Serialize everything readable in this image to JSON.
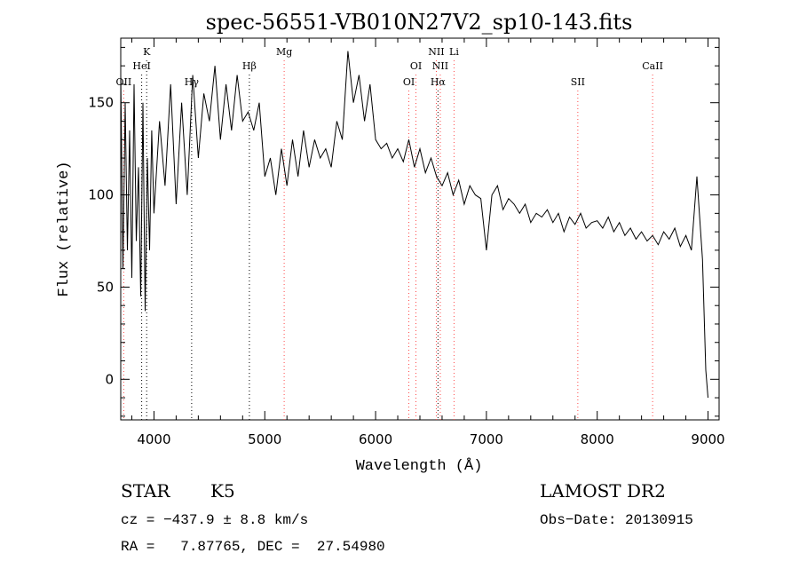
{
  "chart_data": {
    "type": "line",
    "title": "spec-56551-VB010N27V2_sp10-143.fits",
    "xlabel": "Wavelength (Å)",
    "ylabel": "Flux (relative)",
    "xlim": [
      3700,
      9100
    ],
    "ylim": [
      -22,
      185
    ],
    "xticks": [
      4000,
      5000,
      6000,
      7000,
      8000,
      9000
    ],
    "yticks": [
      0,
      50,
      100,
      150
    ],
    "grid": false,
    "line_color": "#000000",
    "marker_color": "#ff4a4a",
    "series": [
      {
        "x": [
          3700,
          3720,
          3740,
          3760,
          3780,
          3800,
          3820,
          3840,
          3860,
          3880,
          3900,
          3920,
          3940,
          3960,
          3980,
          4000,
          4050,
          4100,
          4150,
          4200,
          4250,
          4300,
          4350,
          4400,
          4450,
          4500,
          4550,
          4600,
          4650,
          4700,
          4750,
          4800,
          4850,
          4900,
          4950,
          5000,
          5050,
          5100,
          5150,
          5200,
          5250,
          5300,
          5350,
          5400,
          5450,
          5500,
          5550,
          5600,
          5650,
          5700,
          5750,
          5800,
          5850,
          5900,
          5950,
          6000,
          6050,
          6100,
          6150,
          6200,
          6250,
          6300,
          6350,
          6400,
          6450,
          6500,
          6550,
          6600,
          6650,
          6700,
          6750,
          6800,
          6850,
          6900,
          6950,
          7000,
          7050,
          7100,
          7150,
          7200,
          7250,
          7300,
          7350,
          7400,
          7450,
          7500,
          7550,
          7600,
          7650,
          7700,
          7750,
          7800,
          7850,
          7900,
          7950,
          8000,
          8050,
          8100,
          8150,
          8200,
          8250,
          8300,
          8350,
          8400,
          8450,
          8500,
          8550,
          8600,
          8650,
          8700,
          8750,
          8800,
          8850,
          8900,
          8950,
          8980,
          9000
        ],
        "y": [
          165,
          60,
          150,
          70,
          135,
          55,
          160,
          75,
          115,
          45,
          150,
          37,
          120,
          70,
          135,
          90,
          140,
          105,
          160,
          95,
          150,
          100,
          165,
          120,
          155,
          140,
          170,
          130,
          160,
          135,
          165,
          140,
          145,
          135,
          150,
          110,
          120,
          100,
          125,
          105,
          130,
          110,
          135,
          115,
          130,
          120,
          125,
          115,
          140,
          130,
          178,
          150,
          165,
          140,
          160,
          130,
          125,
          128,
          120,
          125,
          118,
          130,
          115,
          125,
          112,
          120,
          110,
          105,
          112,
          100,
          108,
          95,
          105,
          100,
          98,
          70,
          100,
          105,
          92,
          98,
          95,
          90,
          95,
          85,
          90,
          88,
          92,
          85,
          90,
          80,
          88,
          84,
          90,
          82,
          85,
          86,
          82,
          88,
          80,
          85,
          78,
          82,
          76,
          80,
          75,
          78,
          73,
          80,
          76,
          82,
          72,
          78,
          70,
          110,
          65,
          5,
          -10
        ]
      }
    ],
    "lines": [
      {
        "label": "OII",
        "x": 3727,
        "row": 3,
        "color": "#ff4a4a"
      },
      {
        "label": "K",
        "x": 3934,
        "row": 1,
        "color": "#000000"
      },
      {
        "label": "HeI",
        "x": 3889,
        "row": 2,
        "color": "#000000"
      },
      {
        "label": "Hγ",
        "x": 4340,
        "row": 3,
        "color": "#000000"
      },
      {
        "label": "Hβ",
        "x": 4861,
        "row": 2,
        "color": "#000000"
      },
      {
        "label": "Mg",
        "x": 5175,
        "row": 1,
        "color": "#ff4a4a"
      },
      {
        "label": "OI",
        "x": 6300,
        "row": 3,
        "color": "#ff4a4a"
      },
      {
        "label": "OI",
        "x": 6364,
        "row": 2,
        "color": "#ff4a4a"
      },
      {
        "label": "NII",
        "x": 6548,
        "row": 1,
        "color": "#ff4a4a"
      },
      {
        "label": "NII",
        "x": 6584,
        "row": 2,
        "color": "#ff4a4a"
      },
      {
        "label": "Hα",
        "x": 6563,
        "row": 3,
        "color": "#000000"
      },
      {
        "label": "Li",
        "x": 6708,
        "row": 1,
        "color": "#ff4a4a"
      },
      {
        "label": "SII",
        "x": 7825,
        "row": 3,
        "color": "#ff4a4a"
      },
      {
        "label": "CaII",
        "x": 8500,
        "row": 2,
        "color": "#ff4a4a"
      }
    ]
  },
  "info": {
    "class": "STAR",
    "subclass": "K5",
    "survey": "LAMOST DR2",
    "cz": "cz = −437.9 ± 8.8 km/s",
    "obs_date": "Obs−Date: 20130915",
    "coords": "RA =   7.87765, DEC =  27.54980"
  }
}
